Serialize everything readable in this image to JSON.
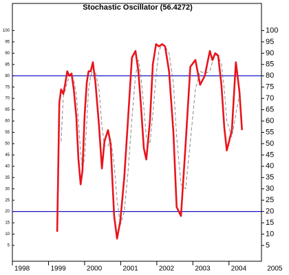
{
  "chart_data": {
    "type": "line",
    "title": "Stochastic Oscillator (56.4272)",
    "x": [
      1999.24,
      1999.3,
      1999.35,
      1999.41,
      1999.47,
      1999.52,
      1999.58,
      1999.64,
      1999.7,
      1999.77,
      1999.83,
      1999.89,
      1999.94,
      2000.0,
      2000.06,
      2000.11,
      2000.17,
      2000.23,
      2000.3,
      2000.4,
      2000.48,
      2000.55,
      2000.65,
      2000.72,
      2000.82,
      2000.9,
      2000.99,
      2001.1,
      2001.2,
      2001.31,
      2001.41,
      2001.49,
      2001.56,
      2001.64,
      2001.71,
      2001.81,
      2001.89,
      2001.98,
      2002.06,
      2002.15,
      2002.23,
      2002.34,
      2002.46,
      2002.55,
      2002.67,
      2002.8,
      2002.93,
      2003.07,
      2003.2,
      2003.33,
      2003.47,
      2003.54,
      2003.62,
      2003.7,
      2003.79,
      2003.87,
      2003.94,
      2004.08,
      2004.19,
      2004.29,
      2004.36
    ],
    "series": [
      {
        "color": "#e8141c",
        "style": "solid",
        "values": [
          11,
          68,
          74,
          72,
          77,
          82,
          80,
          81,
          74,
          62,
          43,
          32,
          38,
          62,
          77,
          82,
          82,
          86,
          77,
          58,
          39,
          51,
          56,
          50,
          18,
          8,
          16,
          35,
          60,
          88,
          91,
          82,
          67,
          48,
          43,
          60,
          85,
          94,
          93,
          94,
          93,
          82,
          55,
          22,
          18,
          50,
          84,
          87,
          76,
          80,
          91,
          87,
          90,
          89,
          76,
          57,
          47,
          56,
          86,
          73,
          56
        ]
      },
      {
        "color": "#888888",
        "style": "dashed",
        "values": [
          null,
          null,
          51,
          71,
          74,
          77,
          80,
          81,
          78,
          72,
          60,
          46,
          38,
          44,
          59,
          74,
          80,
          83,
          82,
          74,
          58,
          49,
          49,
          52,
          41,
          25,
          14,
          20,
          37,
          61,
          80,
          87,
          80,
          66,
          53,
          50,
          63,
          80,
          91,
          94,
          93,
          90,
          77,
          53,
          32,
          30,
          51,
          74,
          82,
          81,
          82,
          86,
          89,
          89,
          85,
          74,
          60,
          53,
          63,
          72,
          72
        ]
      }
    ],
    "levels": [
      20,
      80
    ],
    "level_color": "#1010c8",
    "xlim": [
      1998,
      2004.9
    ],
    "xticks": [
      1998,
      1999,
      2000,
      2001,
      2002,
      2003,
      2004,
      2005
    ],
    "ylim": [
      -2,
      112
    ],
    "yticks": [
      5,
      10,
      15,
      20,
      25,
      30,
      35,
      40,
      45,
      50,
      55,
      60,
      65,
      70,
      75,
      80,
      85,
      90,
      95,
      100
    ]
  }
}
